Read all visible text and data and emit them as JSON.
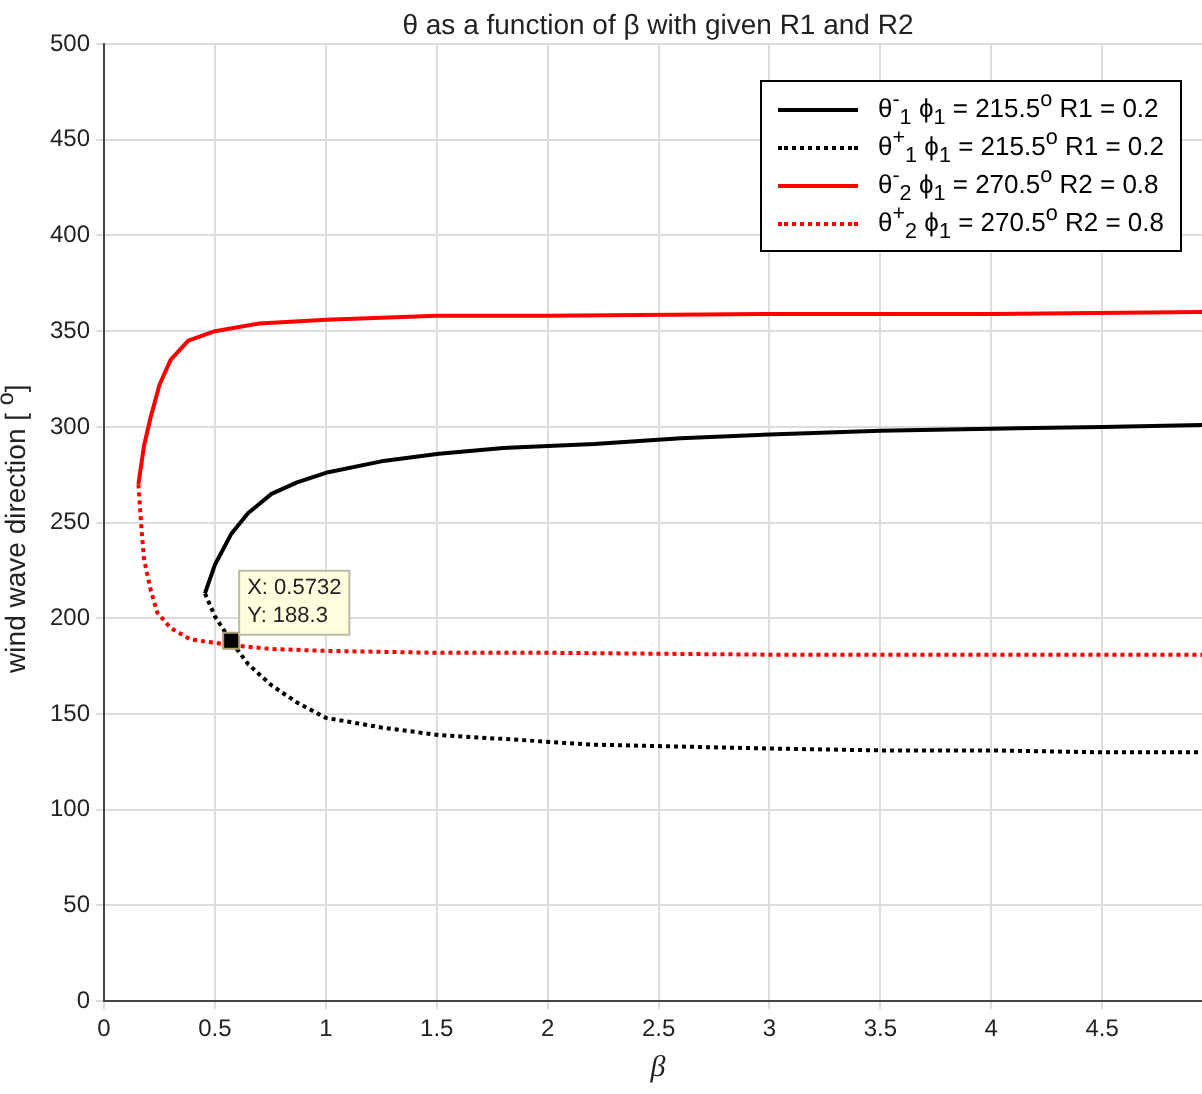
{
  "chart_data": {
    "type": "line",
    "title": "θ as a function of β with given R1 and R2",
    "xlabel": "β",
    "ylabel": "wind wave direction [ $^{o}$]",
    "xlim": [
      0,
      4.95
    ],
    "xticks": [
      0,
      0.5,
      1,
      1.5,
      2,
      2.5,
      3,
      3.5,
      4,
      4.5
    ],
    "ylim": [
      0,
      500
    ],
    "yticks": [
      0,
      50,
      100,
      150,
      200,
      250,
      300,
      350,
      400,
      450,
      500
    ],
    "grid": true,
    "legend": "top right",
    "marker": "none",
    "series": [
      {
        "name": "θ$^{-}$$_{1}$ ϕ$_{1}$ = 215.5$^{o}$  R1 = 0.2",
        "color": "#000000",
        "line_style": "solid",
        "x": [
          0.455,
          0.5,
          0.573,
          0.65,
          0.755,
          0.87,
          1.0,
          1.25,
          1.51,
          1.8,
          2.21,
          2.6,
          3.0,
          3.5,
          4.0,
          4.5,
          4.95
        ],
        "values": [
          213,
          228,
          244,
          255,
          265,
          271,
          276,
          282,
          286,
          289,
          291,
          294,
          296,
          298,
          299,
          300,
          301
        ]
      },
      {
        "name": "θ$^{+}$$_{1}$ ϕ$_{1}$ = 215.5$^{o}$  R1 = 0.2",
        "color": "#000000",
        "line_style": "dotted",
        "x": [
          0.455,
          0.5,
          0.573,
          0.65,
          0.755,
          0.87,
          1.0,
          1.25,
          1.51,
          1.8,
          2.21,
          2.6,
          3.0,
          3.5,
          4.0,
          4.5,
          4.95
        ],
        "values": [
          213,
          201,
          188,
          176,
          165,
          156,
          148,
          143,
          139,
          137,
          134,
          133,
          132,
          131,
          131,
          130,
          130
        ]
      },
      {
        "name": "θ$^{-}$$_{2}$ ϕ$_{1}$ = 270.5$^{o}$  R2 = 0.8",
        "color": "#ff0000",
        "line_style": "solid",
        "x": [
          0.155,
          0.18,
          0.21,
          0.25,
          0.3,
          0.38,
          0.5,
          0.7,
          1.0,
          1.5,
          2.0,
          3.0,
          4.0,
          4.95
        ],
        "values": [
          270,
          290,
          305,
          322,
          335,
          345,
          350,
          354,
          356,
          358,
          358,
          359,
          359,
          360
        ]
      },
      {
        "name": "θ$^{+}$$_{2}$ ϕ$_{1}$ = 270.5$^{o}$  R2 = 0.8",
        "color": "#ff0000",
        "line_style": "dotted",
        "x": [
          0.155,
          0.17,
          0.18,
          0.21,
          0.24,
          0.3,
          0.39,
          0.573,
          0.75,
          1.0,
          1.5,
          2.0,
          3.0,
          4.0,
          4.95
        ],
        "values": [
          270,
          245,
          231,
          215,
          203,
          195,
          189,
          186,
          184,
          183,
          182,
          182,
          181,
          181,
          181
        ]
      }
    ],
    "annotations": [
      {
        "text": "X: 0.5732\nY: 188.3",
        "x": 0.5732,
        "y": 188.3
      }
    ]
  }
}
